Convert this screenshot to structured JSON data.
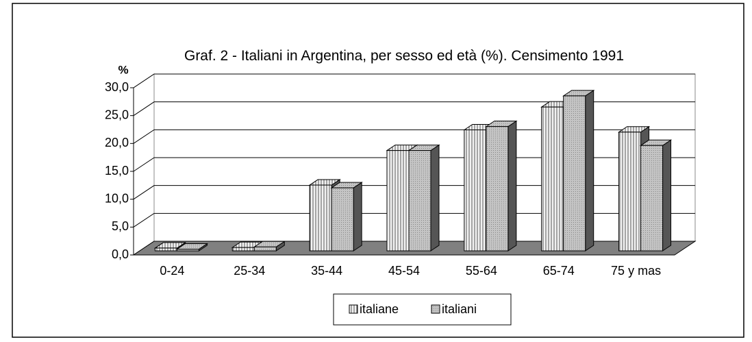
{
  "chart_data": {
    "type": "bar3d",
    "title": "Graf. 2 - Italiani in Argentina, per sesso ed età (%). Censimento 1991",
    "y_label": "%",
    "categories": [
      "0-24",
      "25-34",
      "35-44",
      "45-54",
      "55-64",
      "65-74",
      "75 y mas"
    ],
    "series": [
      {
        "name": "italiane",
        "color": "#f2f2f2",
        "values": [
          0.5,
          0.6,
          11.8,
          18.0,
          21.7,
          25.8,
          21.3
        ]
      },
      {
        "name": "italiani",
        "color": "#c4c4c4",
        "values": [
          0.3,
          0.7,
          11.3,
          18.0,
          22.3,
          27.8,
          18.9
        ]
      }
    ],
    "ylim": [
      0,
      30
    ],
    "yticks": [
      {
        "value": 0,
        "label": "0,0"
      },
      {
        "value": 5,
        "label": "5,0"
      },
      {
        "value": 10,
        "label": "10,0"
      },
      {
        "value": 15,
        "label": "15,0"
      },
      {
        "value": 20,
        "label": "20,0"
      },
      {
        "value": 25,
        "label": "25,0"
      },
      {
        "value": 30,
        "label": "30,0"
      }
    ],
    "grid": true,
    "legend": "bottom"
  }
}
